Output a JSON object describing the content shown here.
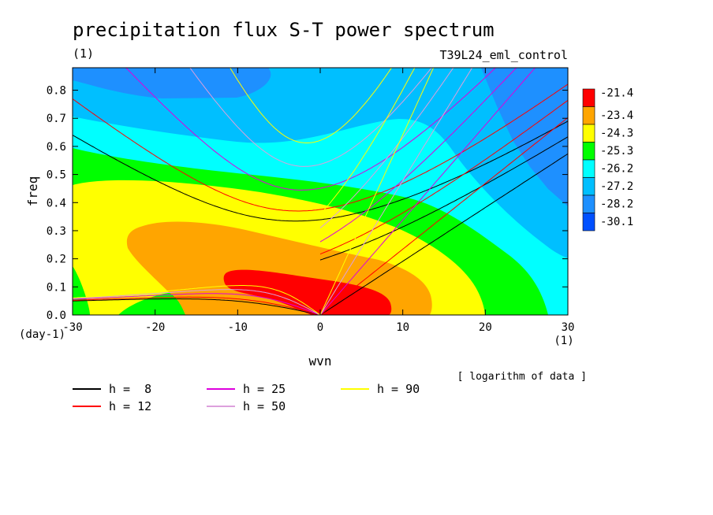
{
  "chart_data": {
    "type": "heatmap",
    "title": "precipitation flux S-T power spectrum",
    "units_left": "(1)",
    "experiment": "T39L24_eml_control",
    "xlabel": "wvn",
    "ylabel": "freq",
    "x_unit": "(1)",
    "y_unit": "(day-1)",
    "xlim": [
      -30,
      30
    ],
    "ylim": [
      0,
      0.88
    ],
    "x_ticks": [
      "-30",
      "-20",
      "-10",
      "0",
      "10",
      "20",
      "30"
    ],
    "y_ticks": [
      "0.0",
      "0.1",
      "0.2",
      "0.3",
      "0.4",
      "0.5",
      "0.6",
      "0.7",
      "0.8"
    ],
    "note": "[ logarithm of data ]",
    "colorbar": {
      "levels": [
        "-21.4",
        "-23.4",
        "-24.3",
        "-25.3",
        "-26.2",
        "-27.2",
        "-28.2",
        "-30.1"
      ],
      "colors": [
        "#ff0000",
        "#ffa500",
        "#ffff00",
        "#00ff00",
        "#00ffff",
        "#00bfff",
        "#1e90ff",
        "#0050ff"
      ]
    },
    "dispersion_curves": [
      {
        "label": "h =  8",
        "h": 8,
        "color": "#000000"
      },
      {
        "label": "h = 12",
        "h": 12,
        "color": "#ff0000"
      },
      {
        "label": "h = 25",
        "h": 25,
        "color": "#dd00dd"
      },
      {
        "label": "h = 50",
        "h": 50,
        "color": "#dda0dd"
      },
      {
        "label": "h = 90",
        "h": 90,
        "color": "#ffff00"
      }
    ]
  }
}
